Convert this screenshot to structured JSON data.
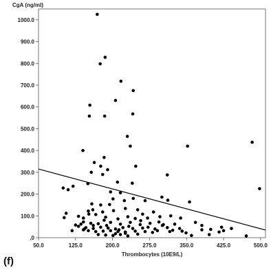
{
  "chart_data": {
    "type": "scatter",
    "title": "",
    "panel_label": "(f)",
    "xlabel": "Thrombocytes (10E9/L)",
    "ylabel": "CgA (ng/ml)",
    "xlim": [
      50,
      510
    ],
    "ylim": [
      0,
      1050
    ],
    "xticks": [
      50,
      125,
      200,
      275,
      350,
      425,
      500
    ],
    "xtick_labels": [
      "50.0",
      "125.0",
      "200.0",
      "275.0",
      "350.0",
      "425.0",
      "500.0"
    ],
    "yticks": [
      0,
      100,
      200,
      300,
      400,
      500,
      600,
      700,
      800,
      900,
      1000
    ],
    "ytick_labels": [
      ",0",
      "100.0",
      "200.0",
      "300.0",
      "400.0",
      "500.0",
      "600.0",
      "700.0",
      "800.0",
      "900.0",
      "1000.0"
    ],
    "grid": false,
    "marker_color": "#000000",
    "line_color": "#000000",
    "regression_line": [
      [
        50,
        315
      ],
      [
        510,
        35
      ]
    ],
    "points": [
      [
        169,
        1025
      ],
      [
        185,
        828
      ],
      [
        175,
        798
      ],
      [
        217,
        718
      ],
      [
        206,
        630
      ],
      [
        242,
        675
      ],
      [
        154,
        608
      ],
      [
        241,
        568
      ],
      [
        153,
        558
      ],
      [
        184,
        558
      ],
      [
        230,
        465
      ],
      [
        140,
        400
      ],
      [
        236,
        420
      ],
      [
        352,
        420
      ],
      [
        483,
        438
      ],
      [
        498,
        225
      ],
      [
        183,
        368
      ],
      [
        163,
        345
      ],
      [
        176,
        328
      ],
      [
        190,
        312
      ],
      [
        157,
        300
      ],
      [
        247,
        328
      ],
      [
        180,
        290
      ],
      [
        311,
        288
      ],
      [
        210,
        255
      ],
      [
        240,
        250
      ],
      [
        100,
        228
      ],
      [
        110,
        220
      ],
      [
        120,
        236
      ],
      [
        150,
        248
      ],
      [
        196,
        210
      ],
      [
        216,
        206
      ],
      [
        300,
        186
      ],
      [
        312,
        172
      ],
      [
        356,
        164
      ],
      [
        266,
        170
      ],
      [
        242,
        180
      ],
      [
        201,
        178
      ],
      [
        224,
        170
      ],
      [
        158,
        155
      ],
      [
        176,
        150
      ],
      [
        194,
        152
      ],
      [
        106,
        112
      ],
      [
        102,
        92
      ],
      [
        131,
        98
      ],
      [
        141,
        90
      ],
      [
        160,
        128
      ],
      [
        180,
        118
      ],
      [
        202,
        124
      ],
      [
        226,
        134
      ],
      [
        251,
        128
      ],
      [
        261,
        108
      ],
      [
        283,
        118
      ],
      [
        296,
        96
      ],
      [
        318,
        100
      ],
      [
        151,
        122
      ],
      [
        166,
        106
      ],
      [
        186,
        94
      ],
      [
        211,
        86
      ],
      [
        231,
        96
      ],
      [
        246,
        88
      ],
      [
        271,
        90
      ],
      [
        141,
        72
      ],
      [
        156,
        66
      ],
      [
        171,
        64
      ],
      [
        196,
        70
      ],
      [
        216,
        62
      ],
      [
        236,
        70
      ],
      [
        256,
        60
      ],
      [
        276,
        66
      ],
      [
        301,
        56
      ],
      [
        326,
        62
      ],
      [
        338,
        90
      ],
      [
        368,
        70
      ],
      [
        381,
        56
      ],
      [
        131,
        52
      ],
      [
        146,
        46
      ],
      [
        161,
        42
      ],
      [
        176,
        48
      ],
      [
        191,
        44
      ],
      [
        206,
        40
      ],
      [
        221,
        46
      ],
      [
        241,
        42
      ],
      [
        261,
        44
      ],
      [
        286,
        40
      ],
      [
        311,
        46
      ],
      [
        336,
        42
      ],
      [
        151,
        32
      ],
      [
        166,
        28
      ],
      [
        181,
        30
      ],
      [
        196,
        32
      ],
      [
        211,
        28
      ],
      [
        226,
        26
      ],
      [
        246,
        30
      ],
      [
        266,
        28
      ],
      [
        291,
        32
      ],
      [
        316,
        28
      ],
      [
        341,
        30
      ],
      [
        171,
        14
      ],
      [
        186,
        12
      ],
      [
        201,
        10
      ],
      [
        216,
        14
      ],
      [
        231,
        8
      ],
      [
        251,
        16
      ],
      [
        206,
        18
      ],
      [
        226,
        20
      ],
      [
        161,
        56
      ],
      [
        136,
        62
      ],
      [
        143,
        40
      ],
      [
        125,
        58
      ],
      [
        152,
        108
      ],
      [
        183,
        80
      ],
      [
        233,
        52
      ],
      [
        257,
        78
      ],
      [
        272,
        48
      ],
      [
        294,
        72
      ],
      [
        349,
        22
      ],
      [
        381,
        36
      ],
      [
        399,
        38
      ],
      [
        421,
        48
      ],
      [
        425,
        32
      ],
      [
        416,
        26
      ],
      [
        396,
        14
      ],
      [
        360,
        10
      ],
      [
        471,
        8
      ],
      [
        441,
        42
      ],
      [
        213,
        36
      ],
      [
        188,
        56
      ],
      [
        118,
        32
      ],
      [
        141,
        36
      ],
      [
        303,
        60
      ],
      [
        322,
        34
      ],
      [
        281,
        24
      ]
    ]
  }
}
